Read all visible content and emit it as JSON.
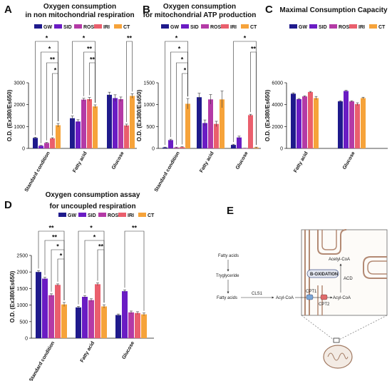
{
  "panel_letters": [
    "A",
    "B",
    "C",
    "D",
    "E"
  ],
  "colors": {
    "GW": "#1f1a8c",
    "SID": "#6a1cc4",
    "ROS": "#b43aa6",
    "IRI": "#ea5f6d",
    "CT": "#f6a33a"
  },
  "legend": [
    "GW",
    "SID",
    "ROS",
    "IRI",
    "CT"
  ],
  "ylabel": "O.D. (Ex380/Es650)",
  "chart_data": [
    {
      "type": "bar",
      "title": [
        "Oxygen consumption",
        "in non mitochondrial respiration"
      ],
      "categories": [
        "Standard condition",
        "Fatty acid",
        "Glucose"
      ],
      "ylim": [
        0,
        3000
      ],
      "yticks": [
        "0",
        "1000",
        "2000",
        "3000"
      ],
      "series": [
        {
          "name": "GW",
          "values": [
            480,
            1380,
            2450
          ],
          "errors": [
            30,
            100,
            120
          ]
        },
        {
          "name": "SID",
          "values": [
            120,
            1230,
            2300
          ],
          "errors": [
            20,
            80,
            150
          ]
        },
        {
          "name": "ROS",
          "values": [
            250,
            2230,
            2250
          ],
          "errors": [
            20,
            60,
            100
          ]
        },
        {
          "name": "IRI",
          "values": [
            460,
            2250,
            1050
          ],
          "errors": [
            30,
            80,
            60
          ]
        },
        {
          "name": "CT",
          "values": [
            1060,
            1920,
            2400
          ],
          "errors": [
            80,
            70,
            100
          ]
        }
      ],
      "significance": [
        {
          "cat": 0,
          "from": 0,
          "to": 4,
          "label": "*"
        },
        {
          "cat": 0,
          "from": 1,
          "to": 4,
          "label": "*"
        },
        {
          "cat": 0,
          "from": 2,
          "to": 4,
          "label": "**"
        },
        {
          "cat": 0,
          "from": 3,
          "to": 4,
          "label": "*"
        },
        {
          "cat": 1,
          "from": 0,
          "to": 4,
          "label": "*"
        },
        {
          "cat": 1,
          "from": 2,
          "to": 4,
          "label": "**"
        },
        {
          "cat": 1,
          "from": 3,
          "to": 4,
          "label": "**"
        },
        {
          "cat": 2,
          "from": 3,
          "to": 4,
          "label": "**"
        }
      ]
    },
    {
      "type": "bar",
      "title": [
        "Oxygen consumption",
        "for mitochondrial ATP production"
      ],
      "categories": [
        "Standard condition",
        "Fatty acid",
        "Glucose"
      ],
      "ylim": [
        0,
        1500
      ],
      "yticks": [
        "0",
        "500",
        "1000",
        "1500"
      ],
      "series": [
        {
          "name": "GW",
          "values": [
            20,
            1170,
            80
          ],
          "errors": [
            10,
            90,
            15
          ]
        },
        {
          "name": "SID",
          "values": [
            190,
            580,
            250
          ],
          "errors": [
            20,
            70,
            30
          ]
        },
        {
          "name": "ROS",
          "values": [
            20,
            1120,
            0
          ],
          "errors": [
            10,
            110,
            5
          ]
        },
        {
          "name": "IRI",
          "values": [
            30,
            560,
            760
          ],
          "errors": [
            10,
            60,
            20
          ]
        },
        {
          "name": "CT",
          "values": [
            1020,
            1120,
            20
          ],
          "errors": [
            120,
            190,
            10
          ]
        }
      ],
      "significance": [
        {
          "cat": 0,
          "from": 0,
          "to": 4,
          "label": "*"
        },
        {
          "cat": 0,
          "from": 1,
          "to": 4,
          "label": "*"
        },
        {
          "cat": 0,
          "from": 2,
          "to": 4,
          "label": "*"
        },
        {
          "cat": 0,
          "from": 3,
          "to": 4,
          "label": "*"
        },
        {
          "cat": 2,
          "from": 0,
          "to": 4,
          "label": "*"
        },
        {
          "cat": 2,
          "from": 3,
          "to": 4,
          "label": "**"
        }
      ]
    },
    {
      "type": "bar",
      "title": [
        "Maximal Consumption Capacity"
      ],
      "categories": [
        "Fatty acid",
        "Glucose"
      ],
      "ylim": [
        0,
        6000
      ],
      "yticks": [
        "0",
        "2000",
        "4000",
        "6000"
      ],
      "series": [
        {
          "name": "GW",
          "values": [
            5000,
            4300
          ],
          "errors": [
            80,
            60
          ]
        },
        {
          "name": "SID",
          "values": [
            4500,
            5250
          ],
          "errors": [
            60,
            60
          ]
        },
        {
          "name": "ROS",
          "values": [
            4750,
            4300
          ],
          "errors": [
            60,
            60
          ]
        },
        {
          "name": "IRI",
          "values": [
            5150,
            4050
          ],
          "errors": [
            60,
            120
          ]
        },
        {
          "name": "CT",
          "values": [
            4600,
            4600
          ],
          "errors": [
            150,
            80
          ]
        }
      ],
      "significance": []
    },
    {
      "type": "bar",
      "title": [
        "Oxygen consumption assay",
        "for uncoupled respiration"
      ],
      "categories": [
        "Standard condition",
        "Fatty acid",
        "Glucose"
      ],
      "ylim": [
        0,
        2500
      ],
      "yticks": [
        "0",
        "500",
        "1000",
        "1500",
        "2000",
        "2500"
      ],
      "series": [
        {
          "name": "GW",
          "values": [
            2000,
            930,
            700
          ],
          "errors": [
            40,
            30,
            30
          ]
        },
        {
          "name": "SID",
          "values": [
            1800,
            1250,
            1420
          ],
          "errors": [
            40,
            40,
            40
          ]
        },
        {
          "name": "ROS",
          "values": [
            1300,
            1150,
            780
          ],
          "errors": [
            40,
            40,
            40
          ]
        },
        {
          "name": "IRI",
          "values": [
            1610,
            1630,
            760
          ],
          "errors": [
            30,
            40,
            40
          ]
        },
        {
          "name": "CT",
          "values": [
            1020,
            960,
            720
          ],
          "errors": [
            60,
            50,
            40
          ]
        }
      ],
      "significance": [
        {
          "cat": 0,
          "from": 0,
          "to": 4,
          "label": "**"
        },
        {
          "cat": 0,
          "from": 1,
          "to": 4,
          "label": "**"
        },
        {
          "cat": 0,
          "from": 2,
          "to": 4,
          "label": "*"
        },
        {
          "cat": 0,
          "from": 3,
          "to": 4,
          "label": "*"
        },
        {
          "cat": 1,
          "from": 0,
          "to": 4,
          "label": "*"
        },
        {
          "cat": 1,
          "from": 1,
          "to": 4,
          "label": "*"
        },
        {
          "cat": 1,
          "from": 3,
          "to": 4,
          "label": "**"
        },
        {
          "cat": 2,
          "from": 1,
          "to": 4,
          "label": "**"
        }
      ]
    }
  ],
  "diagram": {
    "fatty_acids_top": "Fatty acids",
    "tryglyceride": "Tryglyceride",
    "fatty_acids_bottom": "Fatty acids",
    "cls1": "CLS1",
    "acyl_coa_left": "Acyl-CoA",
    "cpt1": "CPT1",
    "cpt2": "CPT2",
    "acyl_coa_right": "Acyl-CoA",
    "acetyl_coa": "Acetyl-CoA",
    "beta_ox": "B-OXIDATION",
    "acd": "ACD"
  }
}
